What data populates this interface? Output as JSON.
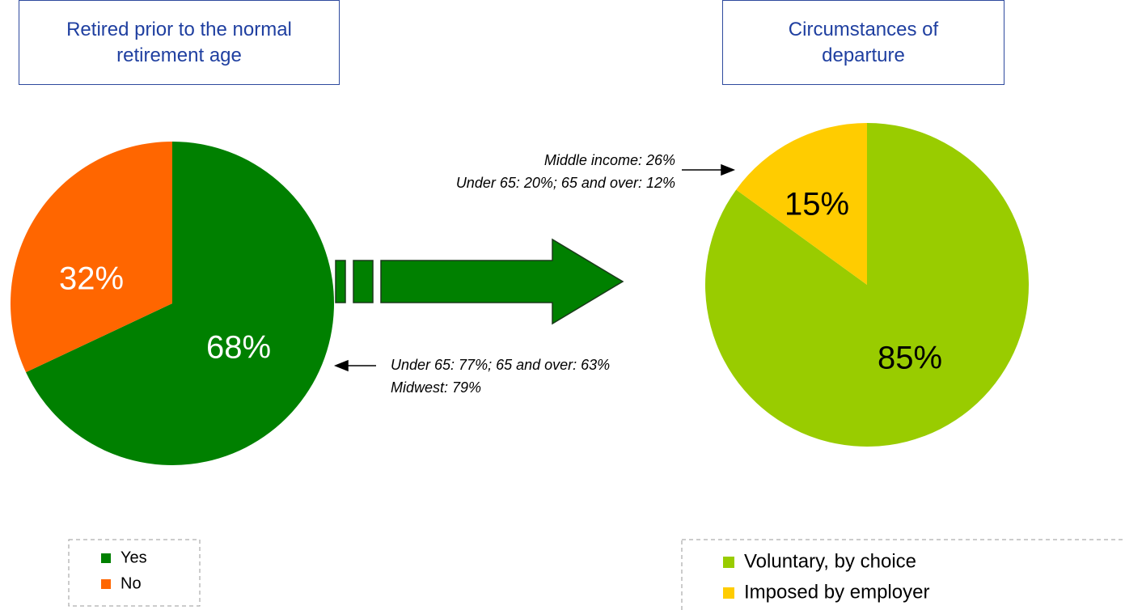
{
  "chart_data": [
    {
      "type": "pie",
      "title": "Retired prior to the normal retirement age",
      "categories": [
        "Yes",
        "No"
      ],
      "values": [
        68,
        32
      ],
      "value_labels": [
        "68%",
        "32%"
      ],
      "colors": [
        "#008000",
        "#ff6600"
      ],
      "label_colors": [
        "#ffffff",
        "#ffffff"
      ],
      "annotations": [
        "Under 65: 77%; 65 and over: 63%",
        "Midwest: 79%"
      ]
    },
    {
      "type": "pie",
      "title": "Circumstances of departure",
      "categories": [
        "Voluntary, by choice",
        "Imposed by employer"
      ],
      "values": [
        85,
        15
      ],
      "value_labels": [
        "85%",
        "15%"
      ],
      "colors": [
        "#99cc00",
        "#ffcc00"
      ],
      "label_colors": [
        "#000000",
        "#000000"
      ],
      "annotations": [
        "Middle income: 26%",
        "Under 65: 20%; 65 and over: 12%"
      ]
    }
  ]
}
